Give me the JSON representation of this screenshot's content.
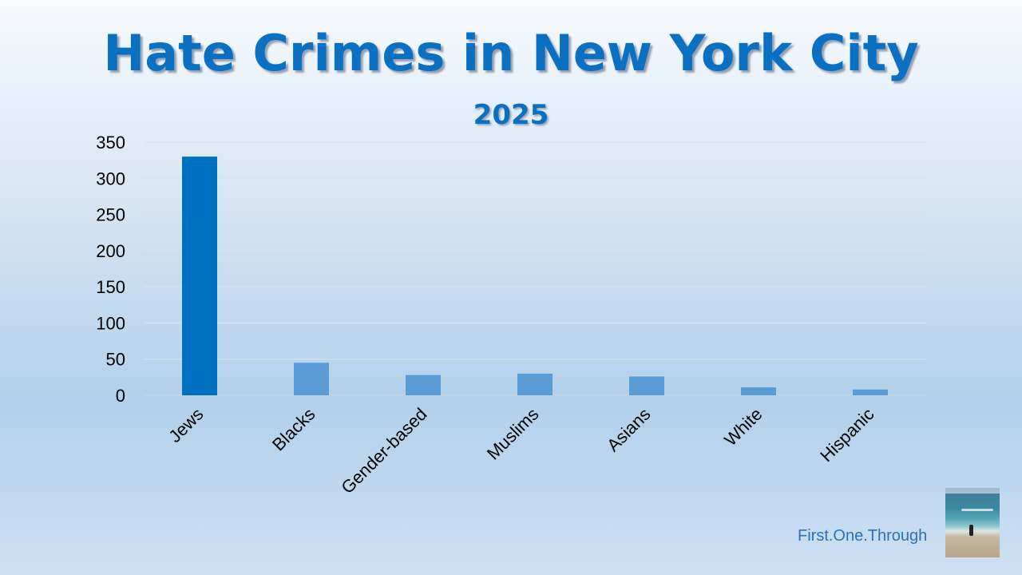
{
  "header": {
    "title": "Hate Crimes in New York City",
    "subtitle": "2025"
  },
  "footer": {
    "credit": "First.One.Through"
  },
  "colors": {
    "highlight_bar": "#0070c0",
    "other_bars": "#5b9bd5",
    "title": "#0a70c2"
  },
  "chart_data": {
    "type": "bar",
    "title": "Hate Crimes in New York City",
    "subtitle": "2025",
    "categories": [
      "Jews",
      "Blacks",
      "Gender-based",
      "Muslims",
      "Asians",
      "White",
      "Hispanic"
    ],
    "values": [
      330,
      45,
      28,
      30,
      26,
      11,
      8
    ],
    "ylim": [
      0,
      350
    ],
    "yticks": [
      0,
      50,
      100,
      150,
      200,
      250,
      300,
      350
    ],
    "grid": true,
    "xlabel": "",
    "ylabel": ""
  }
}
